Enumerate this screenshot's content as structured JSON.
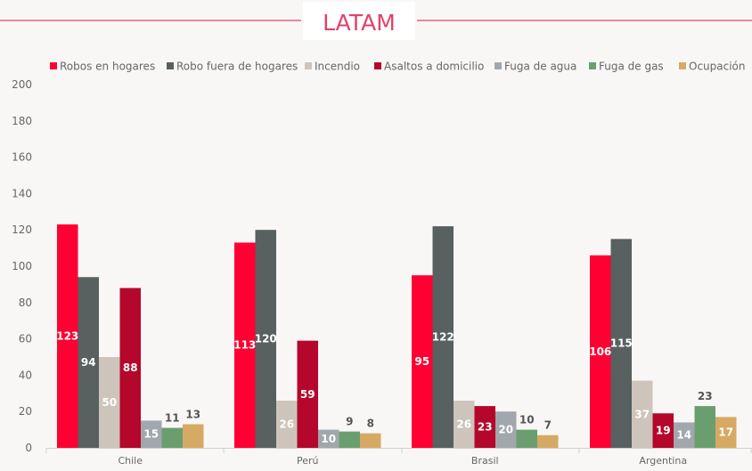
{
  "chart_data": {
    "type": "bar",
    "title": "LATAM",
    "xlabel": "",
    "ylabel": "",
    "ylim": [
      0,
      200
    ],
    "yticks": [
      0,
      20,
      40,
      60,
      80,
      100,
      120,
      140,
      160,
      180,
      200
    ],
    "grid": false,
    "legend_position": "top",
    "categories": [
      "Chile",
      "Perú",
      "Brasil",
      "Argentina"
    ],
    "series": [
      {
        "name": "Robos en hogares",
        "color": "#ff0033",
        "values": [
          123,
          113,
          95,
          106
        ],
        "label_placement": [
          "inside",
          "inside",
          "inside",
          "inside"
        ]
      },
      {
        "name": "Robo fuera de hogares",
        "color": "#586060",
        "values": [
          94,
          120,
          122,
          115
        ],
        "label_placement": [
          "inside",
          "inside",
          "inside",
          "inside"
        ]
      },
      {
        "name": "Incendio",
        "color": "#cdc5bb",
        "values": [
          50,
          26,
          26,
          37
        ],
        "label_placement": [
          "inside",
          "inside",
          "inside",
          "inside"
        ]
      },
      {
        "name": "Asaltos a domicilio",
        "color": "#b5072b",
        "values": [
          88,
          59,
          23,
          19
        ],
        "label_placement": [
          "inside",
          "inside",
          "inside",
          "inside"
        ]
      },
      {
        "name": "Fuga de agua",
        "color": "#a2a7ad",
        "values": [
          15,
          10,
          20,
          14
        ],
        "label_placement": [
          "inside",
          "inside",
          "inside",
          "inside"
        ]
      },
      {
        "name": "Fuga de gas",
        "color": "#6b9e6f",
        "values": [
          11,
          9,
          10,
          23
        ],
        "label_placement": [
          "above",
          "above",
          "above",
          "above"
        ]
      },
      {
        "name": "Ocupación",
        "color": "#d6aa63",
        "values": [
          13,
          8,
          7,
          17
        ],
        "label_placement": [
          "above",
          "above",
          "above",
          "inside"
        ]
      }
    ],
    "colors": {
      "title_accent": "#e2426a",
      "title_box_bg": "#ffffff",
      "axis_line": "#cfcfcf",
      "tick_text": "#666666",
      "label_light": "#ffffff",
      "label_dark": "#555555"
    }
  }
}
